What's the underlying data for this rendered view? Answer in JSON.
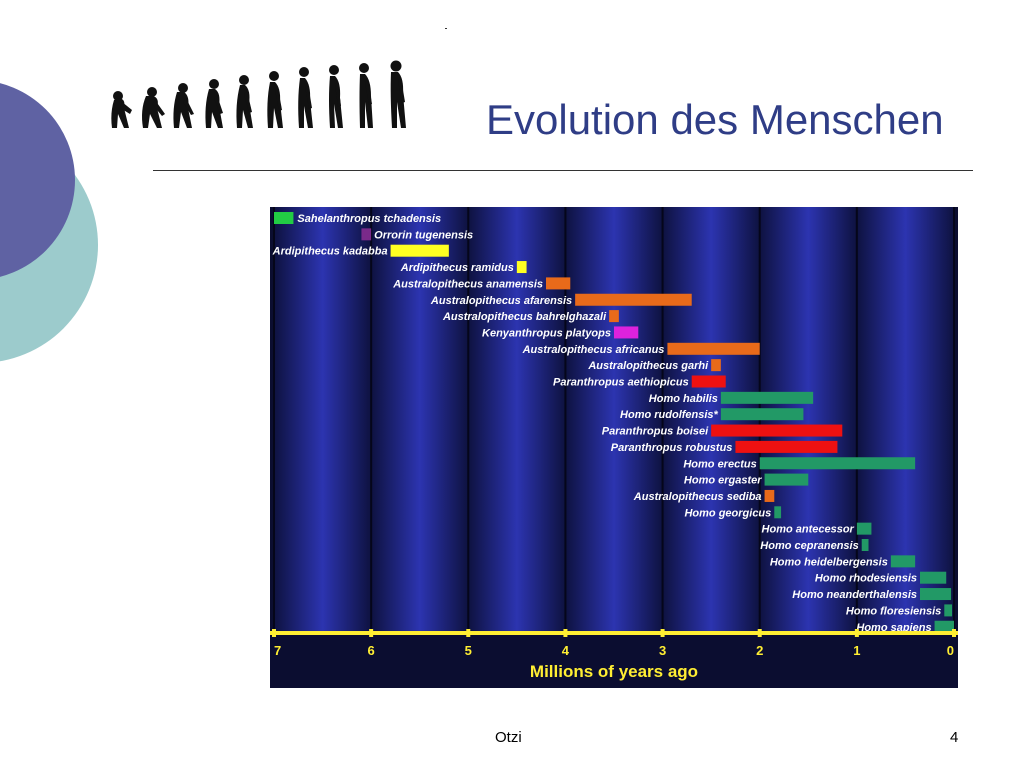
{
  "slide": {
    "title": "Evolution des Menschen",
    "footer": "Otzi",
    "page_number": "4",
    "theme_colors": {
      "circle_dark": "#5f62a3",
      "circle_light": "#9ccbcc",
      "title": "#2f3d86"
    }
  },
  "chart_data": {
    "type": "bar",
    "orientation": "horizontal-range",
    "xlabel": "Millions of years ago",
    "xlim": [
      7,
      0
    ],
    "x_ticks": [
      "7",
      "6",
      "5",
      "4",
      "3",
      "2",
      "1",
      "0"
    ],
    "background": "#1a1e6e",
    "axis_color": "#ffee33",
    "series": [
      {
        "name": "Sahelanthropus tchadensis",
        "start": 7.0,
        "end": 6.8,
        "color": "#22cc44"
      },
      {
        "name": "Orrorin tugenensis",
        "start": 6.1,
        "end": 6.0,
        "color": "#7a2a8a"
      },
      {
        "name": "Ardipithecus kadabba",
        "start": 5.8,
        "end": 5.2,
        "color": "#ffff22"
      },
      {
        "name": "Ardipithecus ramidus",
        "start": 4.5,
        "end": 4.4,
        "color": "#ffff22"
      },
      {
        "name": "Australopithecus anamensis",
        "start": 4.2,
        "end": 3.95,
        "color": "#e86a1a"
      },
      {
        "name": "Australopithecus afarensis",
        "start": 3.9,
        "end": 2.7,
        "color": "#e86a1a"
      },
      {
        "name": "Australopithecus bahrelghazali",
        "start": 3.55,
        "end": 3.45,
        "color": "#e86a1a"
      },
      {
        "name": "Kenyanthropus platyops",
        "start": 3.5,
        "end": 3.25,
        "color": "#dd22dd"
      },
      {
        "name": "Australopithecus africanus",
        "start": 2.95,
        "end": 2.0,
        "color": "#e86a1a"
      },
      {
        "name": "Australopithecus garhi",
        "start": 2.5,
        "end": 2.4,
        "color": "#e86a1a"
      },
      {
        "name": "Paranthropus aethiopicus",
        "start": 2.7,
        "end": 2.35,
        "color": "#ee1111"
      },
      {
        "name": "Homo habilis",
        "start": 2.4,
        "end": 1.45,
        "color": "#229966"
      },
      {
        "name": "Homo rudolfensis*",
        "start": 2.4,
        "end": 1.55,
        "color": "#229966"
      },
      {
        "name": "Paranthropus boisei",
        "start": 2.5,
        "end": 1.15,
        "color": "#ee1111"
      },
      {
        "name": "Paranthropus robustus",
        "start": 2.25,
        "end": 1.2,
        "color": "#ee1111"
      },
      {
        "name": "Homo erectus",
        "start": 2.0,
        "end": 0.4,
        "color": "#229966"
      },
      {
        "name": "Homo ergaster",
        "start": 1.95,
        "end": 1.5,
        "color": "#229966"
      },
      {
        "name": "Australopithecus sediba",
        "start": 1.95,
        "end": 1.85,
        "color": "#e86a1a"
      },
      {
        "name": "Homo georgicus",
        "start": 1.85,
        "end": 1.78,
        "color": "#229966"
      },
      {
        "name": "Homo antecessor",
        "start": 1.0,
        "end": 0.85,
        "color": "#229966"
      },
      {
        "name": "Homo cepranensis",
        "start": 0.95,
        "end": 0.88,
        "color": "#229966"
      },
      {
        "name": "Homo heidelbergensis",
        "start": 0.65,
        "end": 0.4,
        "color": "#229966"
      },
      {
        "name": "Homo rhodesiensis",
        "start": 0.35,
        "end": 0.08,
        "color": "#229966"
      },
      {
        "name": "Homo neanderthalensis",
        "start": 0.35,
        "end": 0.03,
        "color": "#229966"
      },
      {
        "name": "Homo floresiensis",
        "start": 0.1,
        "end": 0.02,
        "color": "#229966"
      },
      {
        "name": "Homo sapiens",
        "start": 0.2,
        "end": 0.0,
        "color": "#229966"
      }
    ]
  }
}
